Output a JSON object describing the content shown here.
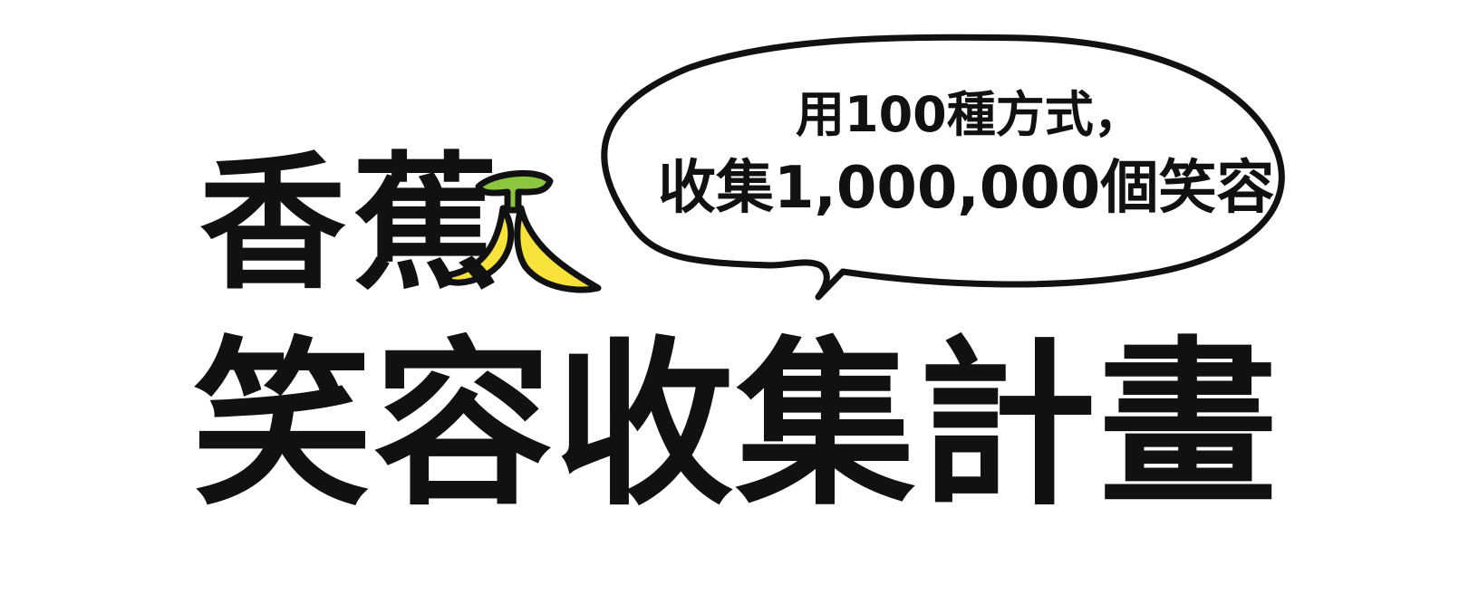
{
  "title": {
    "line1": "香蕉",
    "line2": "笑容收集計畫"
  },
  "speech_bubble": {
    "line1": "用100種方式，",
    "line2": "收集1,000,000個笑容"
  },
  "colors": {
    "ink": "#111111",
    "banana_yellow": "#f7e23a",
    "banana_stem_green": "#8cc63f",
    "background": "#ffffff"
  },
  "icons": [
    "banana-peel-icon",
    "speech-bubble"
  ]
}
